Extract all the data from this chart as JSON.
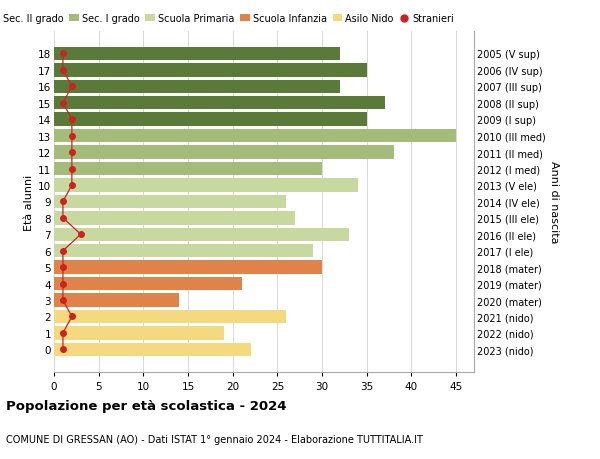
{
  "ages": [
    0,
    1,
    2,
    3,
    4,
    5,
    6,
    7,
    8,
    9,
    10,
    11,
    12,
    13,
    14,
    15,
    16,
    17,
    18
  ],
  "right_labels": [
    "2023 (nido)",
    "2022 (nido)",
    "2021 (nido)",
    "2020 (mater)",
    "2019 (mater)",
    "2018 (mater)",
    "2017 (I ele)",
    "2016 (II ele)",
    "2015 (III ele)",
    "2014 (IV ele)",
    "2013 (V ele)",
    "2012 (I med)",
    "2011 (II med)",
    "2010 (III med)",
    "2009 (I sup)",
    "2008 (II sup)",
    "2007 (III sup)",
    "2006 (IV sup)",
    "2005 (V sup)"
  ],
  "bar_values": [
    22,
    19,
    26,
    14,
    21,
    30,
    29,
    33,
    27,
    26,
    34,
    30,
    38,
    45,
    35,
    37,
    32,
    35,
    32
  ],
  "bar_colors": [
    "#f5d97e",
    "#f5d97e",
    "#f5d97e",
    "#e0834a",
    "#e0834a",
    "#e0834a",
    "#c8d9a0",
    "#c8d9a0",
    "#c8d9a0",
    "#c8d9a0",
    "#c8d9a0",
    "#a3bc7a",
    "#a3bc7a",
    "#a3bc7a",
    "#5a7a3a",
    "#5a7a3a",
    "#5a7a3a",
    "#5a7a3a",
    "#5a7a3a"
  ],
  "stranieri_values": [
    1,
    1,
    2,
    1,
    1,
    1,
    1,
    3,
    1,
    1,
    2,
    2,
    2,
    2,
    2,
    1,
    2,
    1,
    1
  ],
  "xlim": [
    0,
    47
  ],
  "xticks": [
    0,
    5,
    10,
    15,
    20,
    25,
    30,
    35,
    40,
    45
  ],
  "ylabel_left": "Età alunni",
  "ylabel_right": "Anni di nascita",
  "title": "Popolazione per età scolastica - 2024",
  "subtitle": "COMUNE DI GRESSAN (AO) - Dati ISTAT 1° gennaio 2024 - Elaborazione TUTTITALIA.IT",
  "legend_labels": [
    "Sec. II grado",
    "Sec. I grado",
    "Scuola Primaria",
    "Scuola Infanzia",
    "Asilo Nido",
    "Stranieri"
  ],
  "legend_colors": [
    "#5a7a3a",
    "#a3bc7a",
    "#c8d9a0",
    "#e0834a",
    "#f5d97e",
    "#cc2222"
  ],
  "background_color": "#ffffff",
  "grid_color": "#d8d8d8"
}
